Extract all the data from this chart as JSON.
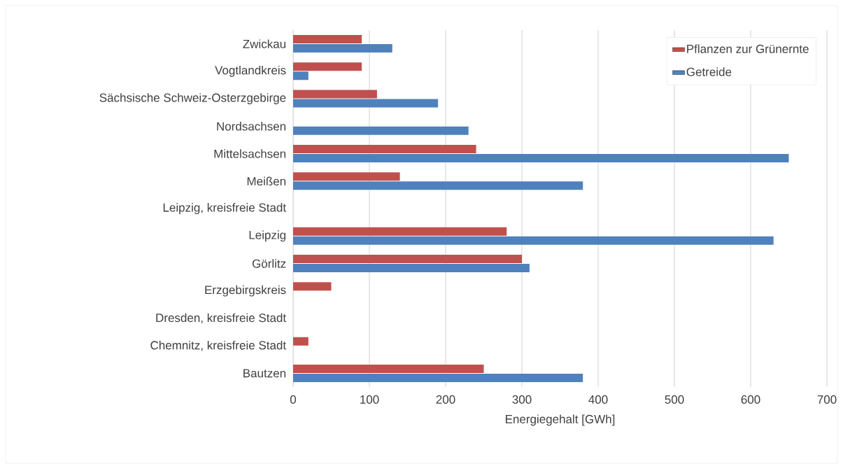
{
  "chart_data": {
    "type": "bar",
    "orientation": "horizontal",
    "xlabel": "Energiegehalt [GWh]",
    "categories": [
      "Zwickau",
      "Vogtlandkreis",
      "Sächsische Schweiz-Osterzgebirge",
      "Nordsachsen",
      "Mittelsachsen",
      "Meißen",
      "Leipzig, kreisfreie Stadt",
      "Leipzig",
      "Görlitz",
      "Erzgebirgskreis",
      "Dresden, kreisfreie Stadt",
      "Chemnitz, kreisfreie Stadt",
      "Bautzen"
    ],
    "series": [
      {
        "name": "Pflanzen zur Grünernte",
        "color": "#c0504d",
        "values": [
          90,
          90,
          110,
          null,
          240,
          140,
          null,
          280,
          300,
          50,
          null,
          20,
          250
        ]
      },
      {
        "name": "Getreide",
        "color": "#4f81bd",
        "values": [
          130,
          20,
          190,
          230,
          650,
          380,
          null,
          630,
          310,
          null,
          null,
          null,
          380
        ]
      }
    ],
    "xlim": [
      0,
      700
    ],
    "xticks": [
      0,
      100,
      200,
      300,
      400,
      500,
      600,
      700
    ],
    "grid": "x",
    "legend": "top right"
  }
}
